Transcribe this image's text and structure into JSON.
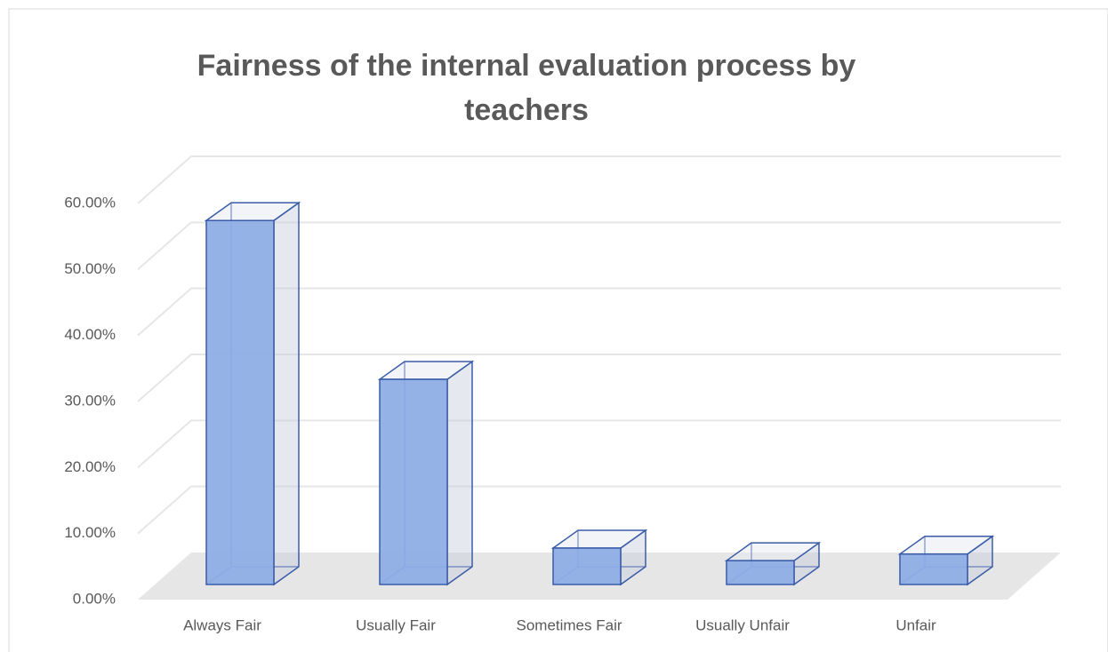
{
  "chart_data": {
    "type": "bar3d",
    "title": [
      "Fairness of the internal evaluation process by",
      "teachers"
    ],
    "categories": [
      "Always Fair",
      "Usually Fair",
      "Sometimes Fair",
      "Usually Unfair",
      "Unfair"
    ],
    "values": [
      55,
      31,
      5.5,
      3.6,
      4.6
    ],
    "color": "#8faee6",
    "ylim": [
      0,
      60
    ],
    "yticks": [
      {
        "value": 0,
        "label": "0.00%"
      },
      {
        "value": 10,
        "label": "10.00%"
      },
      {
        "value": 20,
        "label": "20.00%"
      },
      {
        "value": 30,
        "label": "30.00%"
      },
      {
        "value": 40,
        "label": "40.00%"
      },
      {
        "value": 50,
        "label": "50.00%"
      },
      {
        "value": 60,
        "label": "60.00%"
      }
    ],
    "grid": true
  }
}
